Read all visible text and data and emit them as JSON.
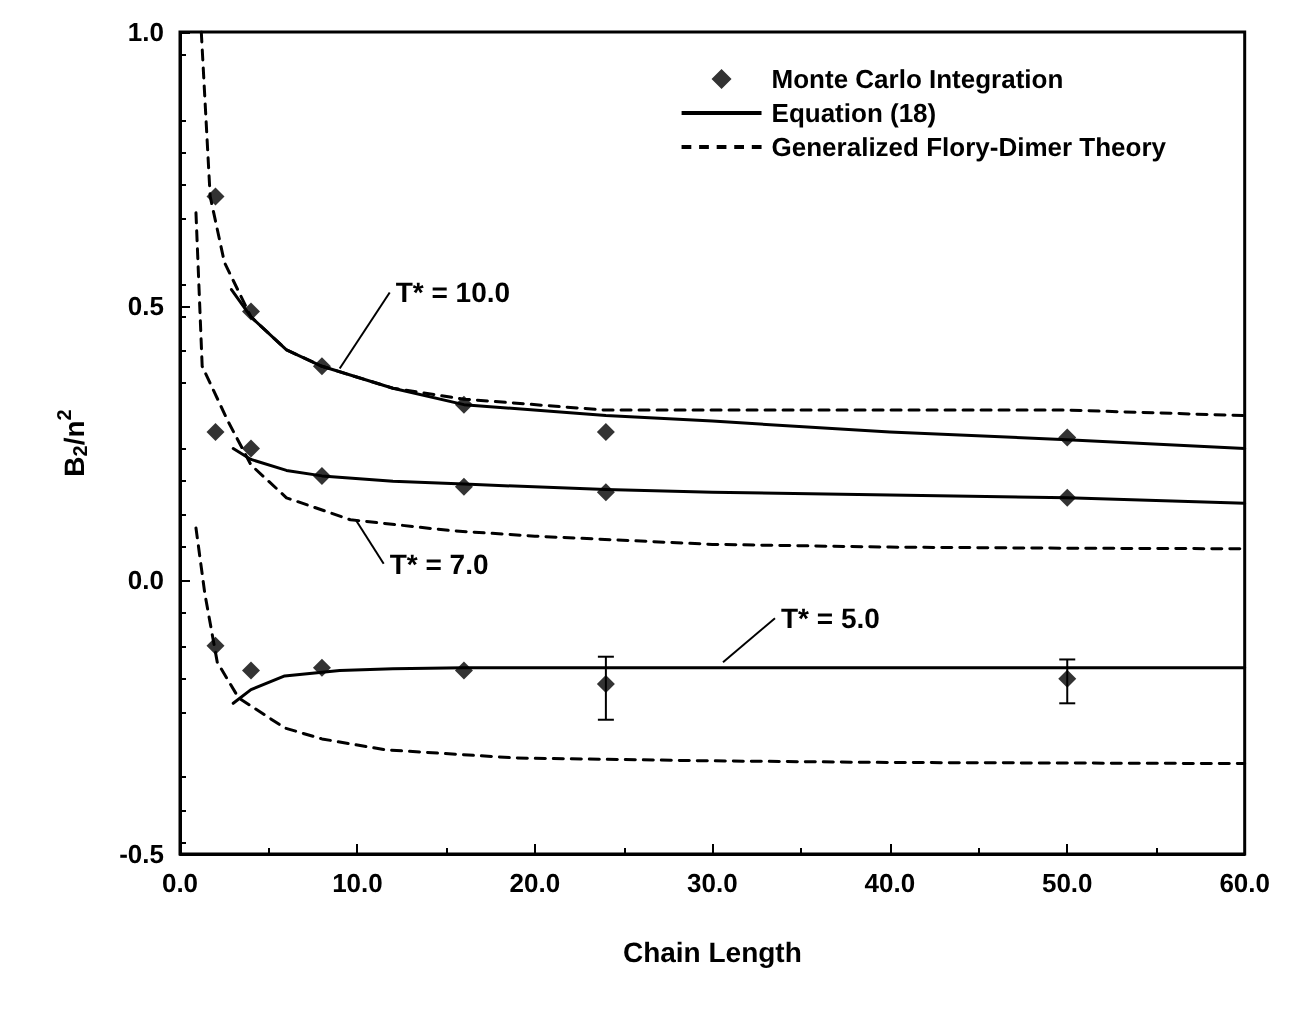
{
  "chart_data": {
    "type": "line",
    "xlabel": "Chain Length",
    "ylabel": "B$_{2}$/n$^{2}$",
    "xlim": [
      0,
      60
    ],
    "xticks": [
      {
        "value": 0,
        "label": "0.0"
      },
      {
        "value": 10,
        "label": "10.0"
      },
      {
        "value": 20,
        "label": "20.0"
      },
      {
        "value": 30,
        "label": "30.0"
      },
      {
        "value": 40,
        "label": "40.0"
      },
      {
        "value": 50,
        "label": "50.0"
      },
      {
        "value": 60,
        "label": "60.0"
      }
    ],
    "ylim": [
      -0.5,
      1.0
    ],
    "yticks": [
      {
        "value": -0.5,
        "label": "-0.5"
      },
      {
        "value": 0,
        "label": "0.0"
      },
      {
        "value": 0.5,
        "label": "0.5"
      },
      {
        "value": 1,
        "label": "1.0"
      }
    ],
    "legend": "top right",
    "grid": false,
    "series": [
      {
        "name": "Monte Carlo Integration",
        "type": "scatter",
        "marker": "diamond",
        "color": "#000000",
        "x": [
          2,
          4,
          8,
          16,
          24,
          50,
          2,
          4,
          8,
          16,
          24,
          50,
          2,
          4,
          8,
          16,
          24,
          50
        ],
        "values": [
          0.7,
          0.49,
          0.39,
          0.32,
          0.27,
          0.26,
          0.27,
          0.24,
          0.19,
          0.17,
          0.16,
          0.15,
          -0.12,
          -0.165,
          -0.16,
          -0.165,
          -0.19,
          -0.18
        ],
        "errors": [
          null,
          null,
          null,
          null,
          null,
          null,
          null,
          null,
          null,
          null,
          null,
          null,
          null,
          null,
          null,
          null,
          [
            -0.255,
            -0.14
          ],
          [
            -0.225,
            -0.145
          ]
        ]
      },
      {
        "name": "Equation (18)",
        "marker": "none",
        "line_style": "solid",
        "color": "#000000",
        "x": [
          2.9,
          4,
          6,
          8,
          12,
          16,
          24,
          30,
          40,
          50,
          60
        ],
        "values": [
          0.53,
          0.48,
          0.42,
          0.39,
          0.35,
          0.32,
          0.3,
          0.29,
          0.27,
          0.256,
          0.24
        ]
      },
      {
        "line_style": "solid",
        "color": "#000000",
        "x": [
          3,
          4,
          6,
          8,
          12,
          16,
          24,
          30,
          40,
          50,
          60
        ],
        "values": [
          0.24,
          0.22,
          0.2,
          0.19,
          0.18,
          0.175,
          0.165,
          0.16,
          0.155,
          0.15,
          0.14
        ]
      },
      {
        "line_style": "solid",
        "color": "#000000",
        "x": [
          3,
          4,
          5.9,
          9,
          12,
          16,
          24,
          30,
          40,
          50,
          60
        ],
        "values": [
          -0.225,
          -0.2,
          -0.175,
          -0.165,
          -0.162,
          -0.16,
          -0.16,
          -0.16,
          -0.16,
          -0.16,
          -0.16
        ]
      },
      {
        "name": "Generalized Flory-Dimer Theory",
        "marker": "none",
        "line_style": "dashed",
        "color": "#000000",
        "x": [
          1.2,
          1.7,
          2.5,
          4,
          6,
          8,
          12,
          16,
          24,
          30,
          40,
          50,
          60
        ],
        "values": [
          1.0,
          0.7,
          0.58,
          0.48,
          0.42,
          0.39,
          0.35,
          0.33,
          0.31,
          0.31,
          0.31,
          0.31,
          0.3
        ]
      },
      {
        "line_style": "dashed",
        "color": "#000000",
        "x": [
          0.9,
          1.25,
          2.7,
          4,
          6,
          9.6,
          15.3,
          20,
          30,
          40,
          50,
          60
        ],
        "values": [
          0.67,
          0.39,
          0.29,
          0.21,
          0.15,
          0.11,
          0.09,
          0.08,
          0.065,
          0.06,
          0.058,
          0.057
        ]
      },
      {
        "line_style": "dashed",
        "color": "#000000",
        "x": [
          0.9,
          1.4,
          2.1,
          3.3,
          5.9,
          8,
          11.6,
          19,
          30,
          40,
          50,
          60
        ],
        "values": [
          0.095,
          -0.025,
          -0.15,
          -0.215,
          -0.27,
          -0.29,
          -0.31,
          -0.325,
          -0.33,
          -0.333,
          -0.334,
          -0.335
        ]
      }
    ],
    "annotations": [
      {
        "text": "T* = 10.0",
        "x": 9,
        "y": 0.386
      },
      {
        "text": "T* = 7.0",
        "x": 9.9,
        "y": 0.11
      },
      {
        "text": "T* = 5.0",
        "x": 30.6,
        "y": -0.15
      }
    ]
  }
}
